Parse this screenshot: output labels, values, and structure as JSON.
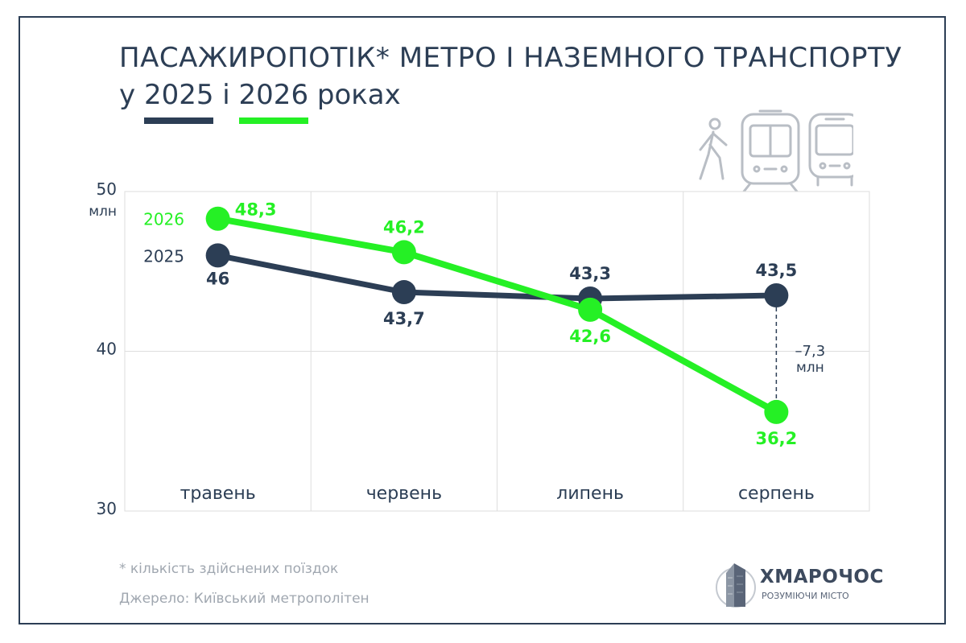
{
  "title": {
    "line1": "ПАСАЖИРОПОТІК* МЕТРО І НАЗЕМНОГО ТРАНСПОРТУ",
    "prefix": "у",
    "year_a": "2025",
    "middle": "і",
    "year_b": "2026",
    "suffix": "роках"
  },
  "footnote": "* кількість здійснених поїздок",
  "source": "Джерело: Київський метрополітен",
  "logo": {
    "name": "ХМАРОЧОС",
    "tagline": "РОЗУМІЮЧИ МІСТО"
  },
  "icons": [
    "pedestrian-icon",
    "tram-icon",
    "bus-icon"
  ],
  "colors": {
    "s2025": "#2c3e55",
    "s2026": "#25f025",
    "grid": "#dddddd",
    "axis_text": "#2c3e55",
    "dashed": "#2c3e55"
  },
  "chart_data": {
    "type": "line",
    "categories": [
      "травень",
      "червень",
      "липень",
      "серпень"
    ],
    "series": [
      {
        "name": "2025",
        "values": [
          46,
          43.7,
          43.3,
          43.5
        ],
        "labels": [
          "46",
          "43,7",
          "43,3",
          "43,5"
        ]
      },
      {
        "name": "2026",
        "values": [
          48.3,
          46.2,
          42.6,
          36.2
        ],
        "labels": [
          "48,3",
          "46,2",
          "42,6",
          "36,2"
        ]
      }
    ],
    "ylim": [
      30,
      50
    ],
    "yticks": [
      "30",
      "40",
      "50"
    ],
    "yunit": "млн",
    "grid": true,
    "annotation": {
      "category": "серпень",
      "text_value": "–7,3",
      "text_unit": "млн"
    }
  }
}
